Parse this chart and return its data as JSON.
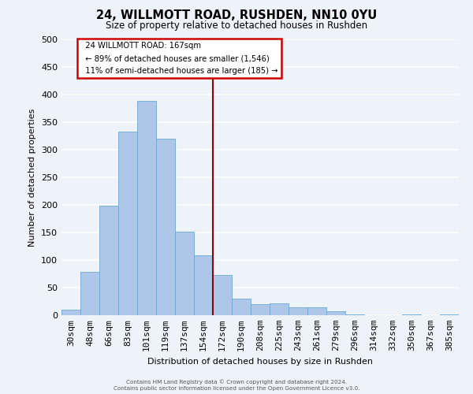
{
  "title": "24, WILLMOTT ROAD, RUSHDEN, NN10 0YU",
  "subtitle": "Size of property relative to detached houses in Rushden",
  "xlabel": "Distribution of detached houses by size in Rushden",
  "ylabel": "Number of detached properties",
  "bar_labels": [
    "30sqm",
    "48sqm",
    "66sqm",
    "83sqm",
    "101sqm",
    "119sqm",
    "137sqm",
    "154sqm",
    "172sqm",
    "190sqm",
    "208sqm",
    "225sqm",
    "243sqm",
    "261sqm",
    "279sqm",
    "296sqm",
    "314sqm",
    "332sqm",
    "350sqm",
    "367sqm",
    "385sqm"
  ],
  "bar_values": [
    10,
    78,
    198,
    333,
    388,
    320,
    151,
    108,
    73,
    30,
    20,
    22,
    15,
    15,
    7,
    1,
    0,
    0,
    1,
    0,
    1
  ],
  "bar_color": "#aec6e8",
  "bar_edge_color": "#6aaad4",
  "vline_color": "#990000",
  "annotation_title": "24 WILLMOTT ROAD: 167sqm",
  "annotation_line1": "← 89% of detached houses are smaller (1,546)",
  "annotation_line2": "11% of semi-detached houses are larger (185) →",
  "annotation_box_facecolor": "#ffffff",
  "annotation_box_edgecolor": "#cc0000",
  "ylim": [
    0,
    500
  ],
  "yticks": [
    0,
    50,
    100,
    150,
    200,
    250,
    300,
    350,
    400,
    450,
    500
  ],
  "footer1": "Contains HM Land Registry data © Crown copyright and database right 2024.",
  "footer2": "Contains public sector information licensed under the Open Government Licence v3.0.",
  "bg_color": "#eef2f9",
  "grid_color": "#ffffff"
}
